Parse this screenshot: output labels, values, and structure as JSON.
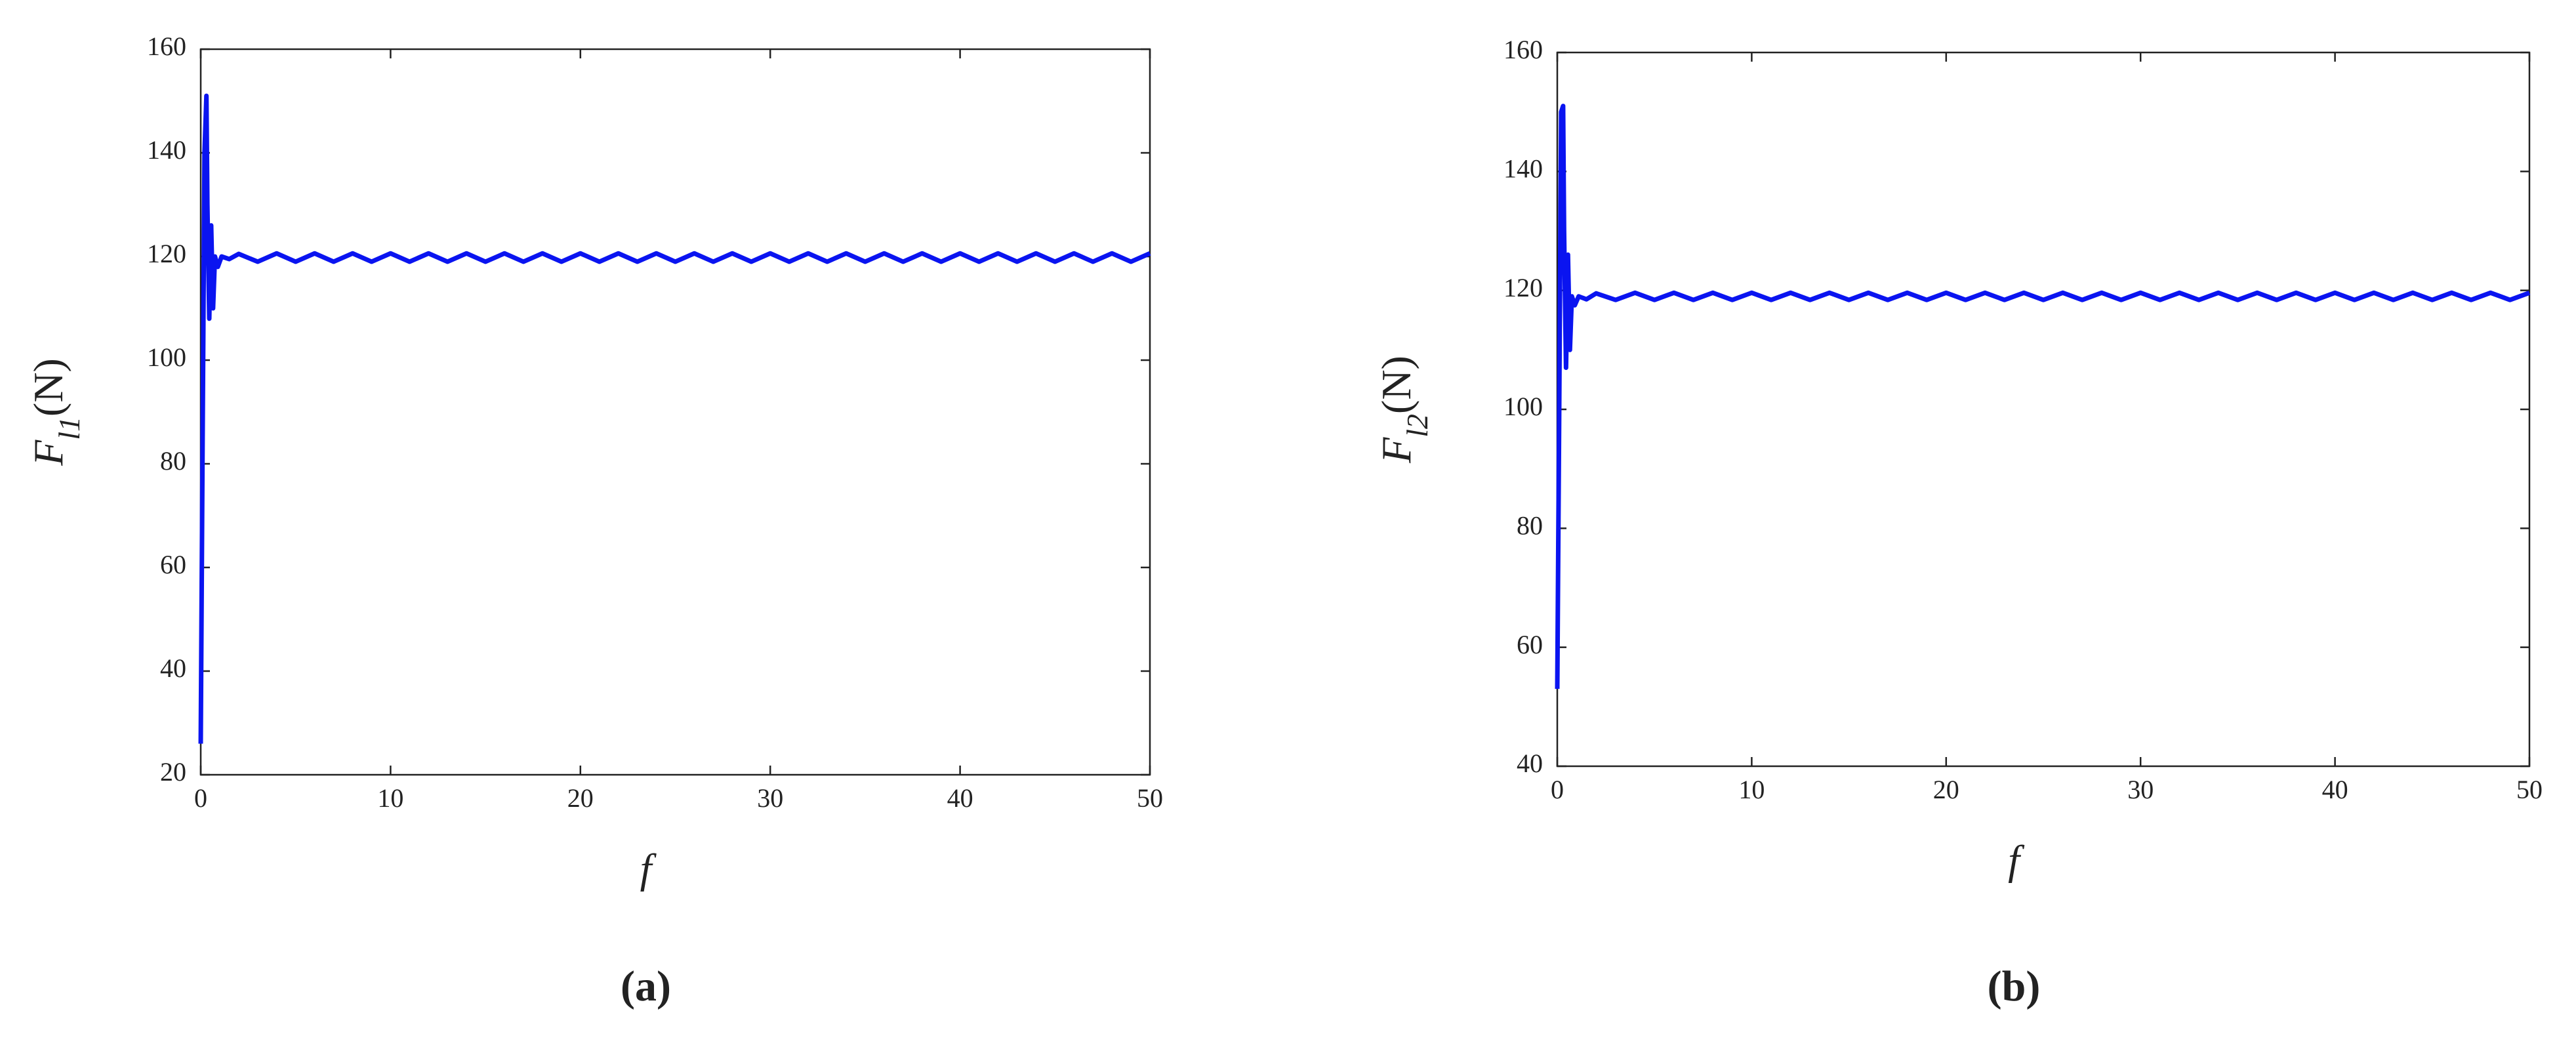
{
  "chart_data": [
    {
      "type": "line",
      "panel_label": "(a)",
      "ylabel": {
        "symbol": "F",
        "subscript": "l1",
        "unit": "(N)"
      },
      "xlabel": "f",
      "color": "#0a14f0",
      "x": [
        0,
        0.1,
        0.2,
        0.3,
        0.35,
        0.45,
        0.55,
        0.65,
        0.75,
        0.9,
        1.1,
        1.5,
        2,
        3,
        4,
        5,
        6,
        7,
        8,
        9,
        10,
        11,
        12,
        13,
        14,
        15,
        16,
        17,
        18,
        19,
        20,
        21,
        22,
        23,
        24,
        25,
        26,
        27,
        28,
        29,
        30,
        31,
        32,
        33,
        34,
        35,
        36,
        37,
        38,
        39,
        40,
        41,
        42,
        43,
        44,
        45,
        46,
        47,
        48,
        49,
        50
      ],
      "values": [
        26,
        85,
        140,
        151,
        130,
        108,
        126,
        110,
        120,
        118,
        120,
        119.5,
        120.5,
        119,
        120.6,
        119,
        120.6,
        119,
        120.6,
        119,
        120.6,
        119,
        120.6,
        119,
        120.6,
        119,
        120.6,
        119,
        120.6,
        119,
        120.6,
        119,
        120.6,
        119,
        120.6,
        119,
        120.6,
        119,
        120.6,
        119,
        120.6,
        119,
        120.6,
        119,
        120.6,
        119,
        120.6,
        119,
        120.6,
        119,
        120.6,
        119,
        120.6,
        119,
        120.6,
        119,
        120.6,
        119,
        120.6,
        119,
        120.6
      ],
      "xlim": [
        0,
        50
      ],
      "xticks": [
        0,
        10,
        20,
        30,
        40,
        50
      ],
      "ylim": [
        20,
        160
      ],
      "yticks": [
        20,
        40,
        60,
        80,
        100,
        120,
        140,
        160
      ]
    },
    {
      "type": "line",
      "panel_label": "(b)",
      "ylabel": {
        "symbol": "F",
        "subscript": "l2",
        "unit": "(N)"
      },
      "xlabel": "f",
      "color": "#0a14f0",
      "x": [
        0,
        0.1,
        0.2,
        0.3,
        0.35,
        0.45,
        0.55,
        0.65,
        0.75,
        0.9,
        1.1,
        1.5,
        2,
        3,
        4,
        5,
        6,
        7,
        8,
        9,
        10,
        11,
        12,
        13,
        14,
        15,
        16,
        17,
        18,
        19,
        20,
        21,
        22,
        23,
        24,
        25,
        26,
        27,
        28,
        29,
        30,
        31,
        32,
        33,
        34,
        35,
        36,
        37,
        38,
        39,
        40,
        41,
        42,
        43,
        44,
        45,
        46,
        47,
        48,
        49,
        50
      ],
      "values": [
        53,
        100,
        150,
        151,
        130,
        107,
        126,
        110,
        119,
        117.5,
        119,
        118.5,
        119.5,
        118.4,
        119.6,
        118.4,
        119.6,
        118.4,
        119.6,
        118.4,
        119.6,
        118.4,
        119.6,
        118.4,
        119.6,
        118.4,
        119.6,
        118.4,
        119.6,
        118.4,
        119.6,
        118.4,
        119.6,
        118.4,
        119.6,
        118.4,
        119.6,
        118.4,
        119.6,
        118.4,
        119.6,
        118.4,
        119.6,
        118.4,
        119.6,
        118.4,
        119.6,
        118.4,
        119.6,
        118.4,
        119.6,
        118.4,
        119.6,
        118.4,
        119.6,
        118.4,
        119.6,
        118.4,
        119.6,
        118.4,
        119.6
      ],
      "xlim": [
        0,
        50
      ],
      "xticks": [
        0,
        10,
        20,
        30,
        40,
        50
      ],
      "ylim": [
        40,
        160
      ],
      "yticks": [
        40,
        60,
        80,
        100,
        120,
        140,
        160
      ]
    }
  ]
}
